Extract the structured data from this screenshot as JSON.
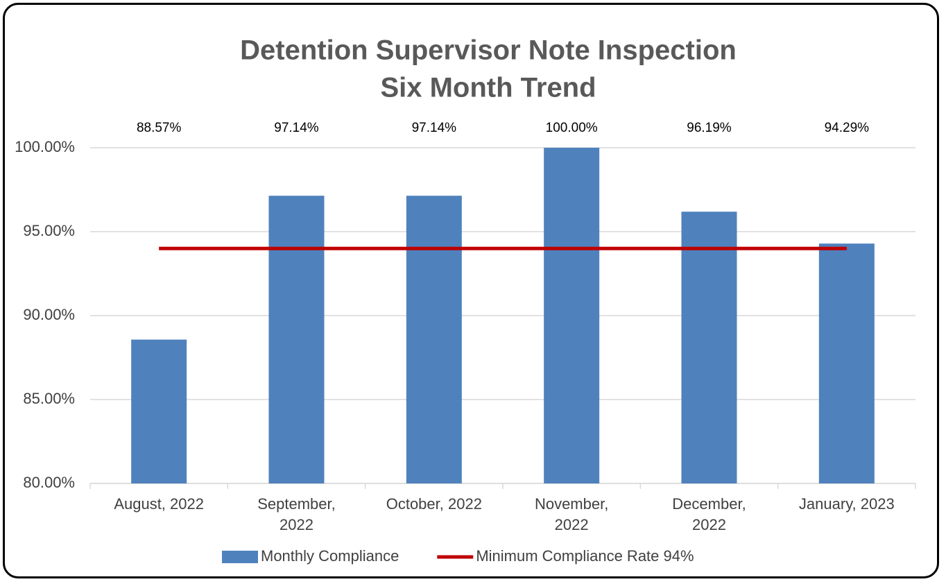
{
  "chart_data": {
    "type": "bar",
    "title": "Detention Supervisor Note Inspection",
    "subtitle": "Six Month Trend",
    "categories": [
      "August, 2022",
      "September, 2022",
      "October, 2022",
      "November, 2022",
      "December, 2022",
      "January, 2023"
    ],
    "series": [
      {
        "name": "Monthly Compliance",
        "color": "#4f81bd",
        "type": "bar",
        "values": [
          88.57,
          97.14,
          97.14,
          100.0,
          96.19,
          94.29
        ],
        "value_labels": [
          "88.57%",
          "97.14%",
          "97.14%",
          "100.00%",
          "96.19%",
          "94.29%"
        ]
      },
      {
        "name": "Minimum Compliance Rate 94%",
        "color": "#c00000",
        "type": "line",
        "values": [
          94,
          94,
          94,
          94,
          94,
          94
        ]
      }
    ],
    "ylim": [
      80,
      100
    ],
    "yticks": [
      {
        "value": 80,
        "label": "80.00%"
      },
      {
        "value": 85,
        "label": "85.00%"
      },
      {
        "value": 90,
        "label": "90.00%"
      },
      {
        "value": 95,
        "label": "95.00%"
      },
      {
        "value": 100,
        "label": "100.00%"
      }
    ],
    "grid": true,
    "legend": "bottom"
  }
}
